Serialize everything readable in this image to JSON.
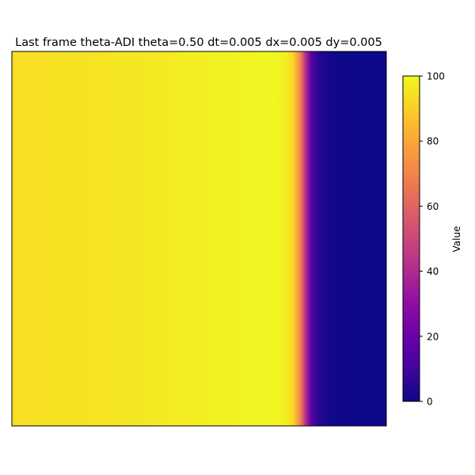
{
  "chart_data": {
    "type": "heatmap",
    "title": "Last frame theta-ADI theta=0.50 dt=0.005 dx=0.005 dy=0.005",
    "xlabel": "",
    "ylabel": "",
    "axes_ticks_visible": false,
    "colormap": "plasma",
    "vmin": 0,
    "vmax": 100,
    "colorbar": {
      "label": "Value",
      "ticks": [
        0,
        20,
        40,
        60,
        80,
        100
      ],
      "tick_labels": [
        "0",
        "20",
        "40",
        "60",
        "80",
        "100"
      ]
    },
    "profile_note_values": "field varies only along x; values sampled left to right across the domain",
    "profile": {
      "x": [
        0.0,
        0.1,
        0.2,
        0.3,
        0.4,
        0.5,
        0.6,
        0.65,
        0.7,
        0.73,
        0.75,
        0.77,
        0.785,
        0.8,
        0.82,
        0.85,
        0.9,
        1.0
      ],
      "values": [
        94,
        94.5,
        95,
        95.5,
        96.5,
        97.5,
        98.5,
        99,
        99,
        98,
        92,
        70,
        40,
        15,
        5,
        1,
        0,
        0
      ]
    }
  }
}
